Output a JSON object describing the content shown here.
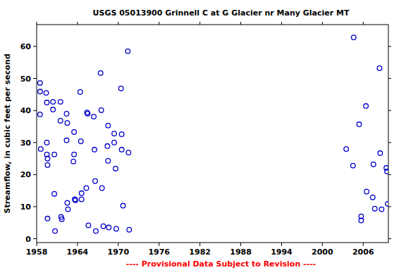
{
  "chart_data": {
    "type": "scatter",
    "title": "USGS 05013900 Grinnell C at G Glacier nr Many Glacier MT",
    "y_label": "Streamflow, in cubic feet per second",
    "footnote": "---- Provisional Data Subject to Revision ----",
    "x": [
      1958.5,
      1958.5,
      1958.5,
      1958.6,
      1959.4,
      1959.5,
      1959.5,
      1959.5,
      1959.6,
      1959.6,
      1959.6,
      1960.4,
      1960.4,
      1960.6,
      1960.6,
      1960.7,
      1961.5,
      1961.5,
      1961.6,
      1961.7,
      1962.4,
      1962.5,
      1962.4,
      1962.5,
      1962.6,
      1963.5,
      1963.5,
      1963.4,
      1963.6,
      1963.7,
      1964.4,
      1964.5,
      1964.6,
      1964.6,
      1965.3,
      1965.4,
      1965.5,
      1965.6,
      1966.4,
      1966.5,
      1966.6,
      1966.7,
      1967.4,
      1967.5,
      1967.6,
      1967.8,
      1968.5,
      1968.4,
      1968.5,
      1968.6,
      1969.4,
      1969.4,
      1969.6,
      1969.7,
      1970.4,
      1970.5,
      1970.5,
      1970.7,
      1971.4,
      1971.5,
      1971.6,
      2003.5,
      2004.6,
      2004.5,
      2005.4,
      2005.7,
      2005.7,
      2006.4,
      2006.5,
      2007.4,
      2007.5,
      2007.7,
      2008.4,
      2008.5,
      2008.7,
      2009.4,
      2009.5,
      2009.6
    ],
    "values": [
      48.6,
      45.9,
      38.8,
      28.0,
      45.5,
      42.5,
      30.0,
      26.3,
      25.0,
      23.0,
      6.3,
      42.7,
      40.3,
      26.3,
      14.0,
      2.4,
      42.7,
      36.8,
      6.8,
      6.1,
      39.0,
      36.1,
      30.7,
      11.2,
      9.2,
      33.3,
      26.3,
      24.1,
      12.3,
      12.0,
      45.8,
      30.4,
      14.2,
      12.3,
      15.8,
      39.4,
      39.0,
      4.2,
      38.1,
      27.8,
      18.0,
      2.4,
      51.7,
      40.1,
      15.8,
      3.9,
      35.3,
      28.9,
      24.3,
      3.5,
      32.8,
      30.0,
      21.9,
      3.1,
      46.9,
      32.6,
      27.8,
      10.3,
      58.5,
      26.9,
      2.8,
      28.0,
      62.8,
      22.8,
      35.7,
      7.0,
      5.7,
      41.4,
      14.7,
      12.9,
      23.2,
      9.4,
      53.2,
      26.7,
      9.2,
      22.1,
      21.0,
      10.9
    ],
    "color": "#0000cc",
    "marker": "circle",
    "xlim": [
      1958,
      2009.7
    ],
    "ylim": [
      -1.2,
      66.8
    ],
    "xticks": [
      1958,
      1964,
      1970,
      1976,
      1982,
      1988,
      1994,
      2000,
      2006
    ],
    "yticks": [
      0,
      10,
      20,
      30,
      40,
      50,
      60
    ],
    "grid": false
  }
}
